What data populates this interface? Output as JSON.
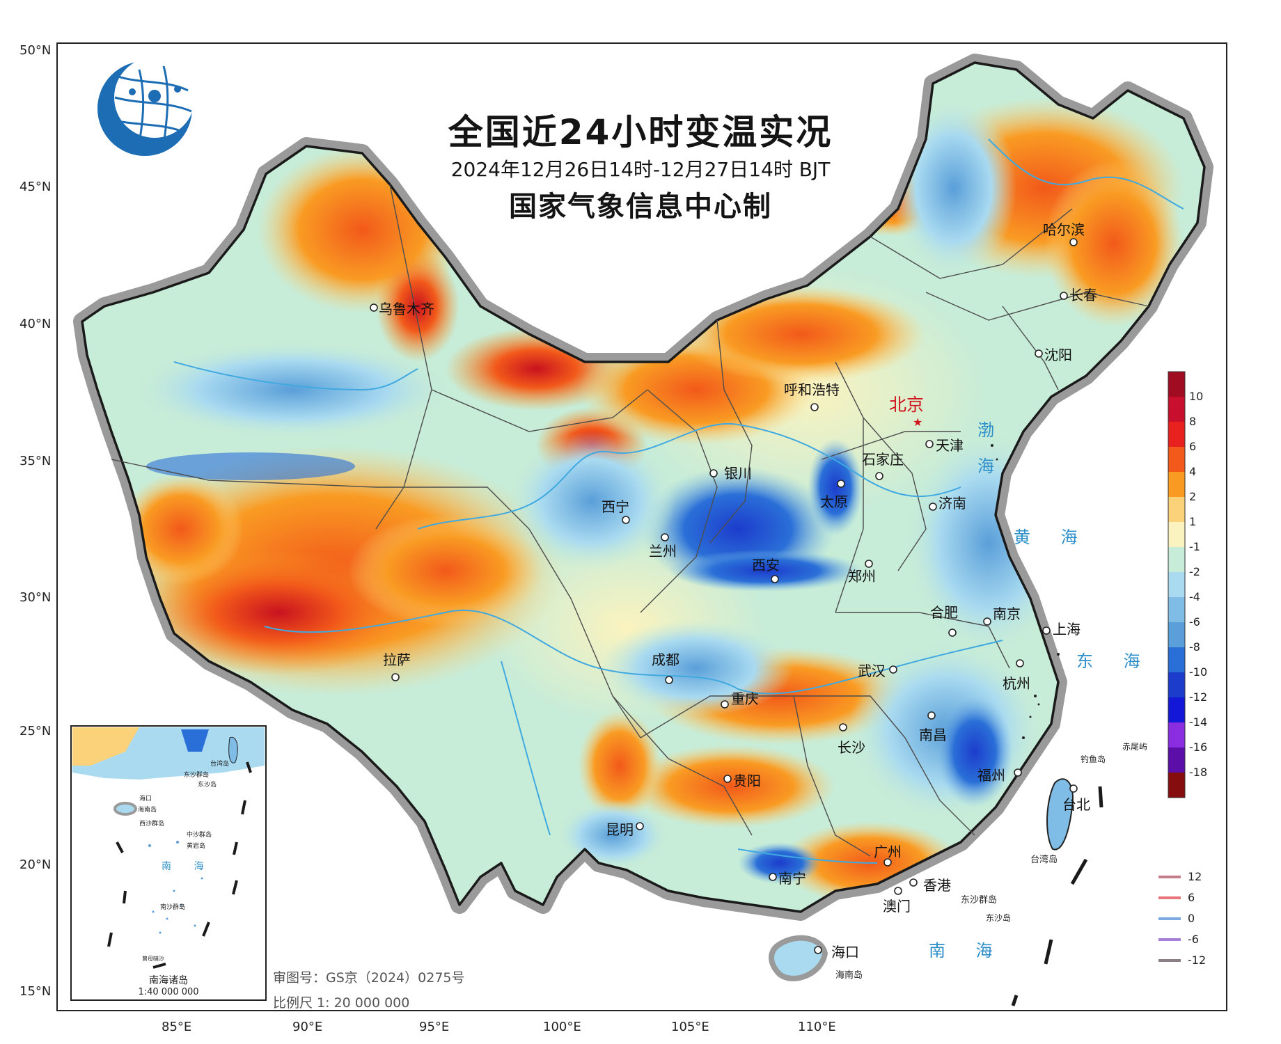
{
  "header": {
    "title": "全国近24小时变温实况",
    "period": "2024年12月26日14时-12月27日14时 BJT",
    "producer": "国家气象信息中心制"
  },
  "axes": {
    "lat_labels": [
      "50°N",
      "45°N",
      "40°N",
      "35°N",
      "30°N",
      "25°N",
      "20°N",
      "15°N"
    ],
    "lon_labels": [
      "85°E",
      "90°E",
      "95°E",
      "100°E",
      "105°E",
      "110°E"
    ]
  },
  "legend": {
    "colorbar_title": "",
    "colorbar_labels": [
      "10",
      "8",
      "6",
      "4",
      "2",
      "1",
      "-1",
      "-2",
      "-4",
      "-6",
      "-8",
      "-10",
      "-12",
      "-14",
      "-16",
      "-18"
    ],
    "colorbar_colors": [
      "#a00d22",
      "#c8102e",
      "#e8201e",
      "#f2591a",
      "#f99b23",
      "#fbd27a",
      "#fbf3bf",
      "#c7ecd8",
      "#a9daf0",
      "#7fbde6",
      "#5a9fd9",
      "#2a6fd8",
      "#1c3ccc",
      "#1217d8",
      "#8a2de0",
      "#5b0fa8",
      "#860d0d"
    ],
    "contour_labels": [
      "12",
      "6",
      "0",
      "-6",
      "-12"
    ],
    "contour_colors": [
      "#c67d8c",
      "#e8737a",
      "#7fa9e0",
      "#a57fd6",
      "#8d7f86"
    ]
  },
  "cities": {
    "urumqi": "乌鲁木齐",
    "hohhot": "呼和浩特",
    "beijing": "北京",
    "tianjin": "天津",
    "shijiazhuang": "石家庄",
    "yinchuan": "银川",
    "taiyuan": "太原",
    "jinan": "济南",
    "xining": "西宁",
    "lanzhou": "兰州",
    "xian": "西安",
    "zhengzhou": "郑州",
    "hefei": "合肥",
    "nanjing": "南京",
    "shanghai": "上海",
    "lhasa": "拉萨",
    "chengdu": "成都",
    "wuhan": "武汉",
    "hangzhou": "杭州",
    "chongqing": "重庆",
    "changsha": "长沙",
    "nanchang": "南昌",
    "fuzhou": "福州",
    "guiyang": "贵阳",
    "taipei": "台北",
    "kunming": "昆明",
    "guangzhou": "广州",
    "nanning": "南宁",
    "hongkong": "香港",
    "macau": "澳门",
    "haikou": "海口",
    "harbin": "哈尔滨",
    "changchun": "长春",
    "shenyang": "沈阳"
  },
  "places": {
    "hainan_island": "海南岛",
    "taiwan_island": "台湾岛",
    "dongsha": "东沙群岛",
    "dongsha_island": "东沙岛",
    "diaoyu": "钓鱼岛",
    "chiwei": "赤尾屿"
  },
  "seas": {
    "bohai_1": "渤",
    "bohai_2": "海",
    "huanghai": "黄 海",
    "donghai": "东 海",
    "nanhai": "南 海"
  },
  "inset": {
    "caption": "南海诸岛",
    "scale": "1:40 000 000",
    "labels": [
      "台湾岛",
      "东沙群岛",
      "东沙岛",
      "海口",
      "海南岛",
      "西沙群岛",
      "中沙群岛",
      "黄岩岛",
      "南 海",
      "南沙群岛",
      "曾母暗沙"
    ]
  },
  "footer": {
    "approval": "审图号：GS京（2024）0275号",
    "scale": "比例尺 1: 20 000 000"
  },
  "colors": {
    "frame": "#222222",
    "border_halo": "#9a9a9a",
    "river": "#3fa9e0"
  }
}
